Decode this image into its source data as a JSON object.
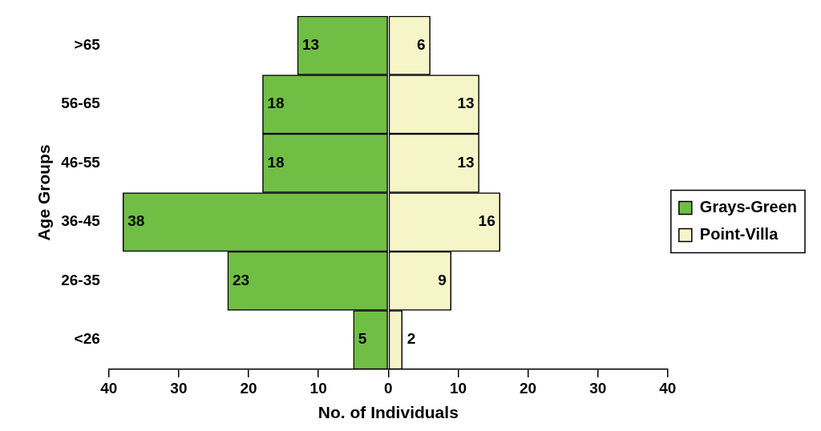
{
  "chart_data": {
    "type": "bar",
    "orientation": "horizontal",
    "xlabel": "No. of Individuals",
    "ylabel": "Age Groups",
    "categories": [
      ">65",
      "56-65",
      "46-55",
      "36-45",
      "26-35",
      "<26"
    ],
    "series": [
      {
        "name": "Grays-Green",
        "color": "#70bf44",
        "values": [
          13,
          18,
          18,
          38,
          23,
          5
        ],
        "base": [
          -13,
          -18,
          -18,
          -38,
          -23,
          -5
        ]
      },
      {
        "name": "Point-Villa",
        "color": "#f5f5c8",
        "values": [
          6,
          13,
          13,
          16,
          9,
          2
        ]
      }
    ],
    "data_labels": true,
    "xlim": [
      -40,
      40
    ],
    "xticks": [
      {
        "value": -40,
        "label": "40"
      },
      {
        "value": -30,
        "label": "30"
      },
      {
        "value": -20,
        "label": "20"
      },
      {
        "value": -10,
        "label": "10"
      },
      0,
      10,
      20,
      30,
      40
    ],
    "legend": "right"
  }
}
